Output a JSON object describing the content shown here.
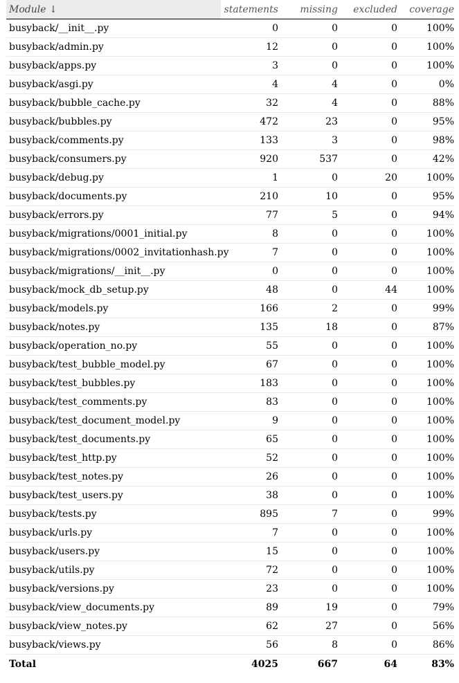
{
  "table": {
    "headers": {
      "module": "Module ↓",
      "statements": "statements",
      "missing": "missing",
      "excluded": "excluded",
      "coverage": "coverage"
    },
    "rows": [
      {
        "module": "busyback/__init__.py",
        "statements": "0",
        "missing": "0",
        "excluded": "0",
        "coverage": "100%"
      },
      {
        "module": "busyback/admin.py",
        "statements": "12",
        "missing": "0",
        "excluded": "0",
        "coverage": "100%"
      },
      {
        "module": "busyback/apps.py",
        "statements": "3",
        "missing": "0",
        "excluded": "0",
        "coverage": "100%"
      },
      {
        "module": "busyback/asgi.py",
        "statements": "4",
        "missing": "4",
        "excluded": "0",
        "coverage": "0%"
      },
      {
        "module": "busyback/bubble_cache.py",
        "statements": "32",
        "missing": "4",
        "excluded": "0",
        "coverage": "88%"
      },
      {
        "module": "busyback/bubbles.py",
        "statements": "472",
        "missing": "23",
        "excluded": "0",
        "coverage": "95%"
      },
      {
        "module": "busyback/comments.py",
        "statements": "133",
        "missing": "3",
        "excluded": "0",
        "coverage": "98%"
      },
      {
        "module": "busyback/consumers.py",
        "statements": "920",
        "missing": "537",
        "excluded": "0",
        "coverage": "42%"
      },
      {
        "module": "busyback/debug.py",
        "statements": "1",
        "missing": "0",
        "excluded": "20",
        "coverage": "100%"
      },
      {
        "module": "busyback/documents.py",
        "statements": "210",
        "missing": "10",
        "excluded": "0",
        "coverage": "95%"
      },
      {
        "module": "busyback/errors.py",
        "statements": "77",
        "missing": "5",
        "excluded": "0",
        "coverage": "94%"
      },
      {
        "module": "busyback/migrations/0001_initial.py",
        "statements": "8",
        "missing": "0",
        "excluded": "0",
        "coverage": "100%"
      },
      {
        "module": "busyback/migrations/0002_invitationhash.py",
        "statements": "7",
        "missing": "0",
        "excluded": "0",
        "coverage": "100%"
      },
      {
        "module": "busyback/migrations/__init__.py",
        "statements": "0",
        "missing": "0",
        "excluded": "0",
        "coverage": "100%"
      },
      {
        "module": "busyback/mock_db_setup.py",
        "statements": "48",
        "missing": "0",
        "excluded": "44",
        "coverage": "100%"
      },
      {
        "module": "busyback/models.py",
        "statements": "166",
        "missing": "2",
        "excluded": "0",
        "coverage": "99%"
      },
      {
        "module": "busyback/notes.py",
        "statements": "135",
        "missing": "18",
        "excluded": "0",
        "coverage": "87%"
      },
      {
        "module": "busyback/operation_no.py",
        "statements": "55",
        "missing": "0",
        "excluded": "0",
        "coverage": "100%"
      },
      {
        "module": "busyback/test_bubble_model.py",
        "statements": "67",
        "missing": "0",
        "excluded": "0",
        "coverage": "100%"
      },
      {
        "module": "busyback/test_bubbles.py",
        "statements": "183",
        "missing": "0",
        "excluded": "0",
        "coverage": "100%"
      },
      {
        "module": "busyback/test_comments.py",
        "statements": "83",
        "missing": "0",
        "excluded": "0",
        "coverage": "100%"
      },
      {
        "module": "busyback/test_document_model.py",
        "statements": "9",
        "missing": "0",
        "excluded": "0",
        "coverage": "100%"
      },
      {
        "module": "busyback/test_documents.py",
        "statements": "65",
        "missing": "0",
        "excluded": "0",
        "coverage": "100%"
      },
      {
        "module": "busyback/test_http.py",
        "statements": "52",
        "missing": "0",
        "excluded": "0",
        "coverage": "100%"
      },
      {
        "module": "busyback/test_notes.py",
        "statements": "26",
        "missing": "0",
        "excluded": "0",
        "coverage": "100%"
      },
      {
        "module": "busyback/test_users.py",
        "statements": "38",
        "missing": "0",
        "excluded": "0",
        "coverage": "100%"
      },
      {
        "module": "busyback/tests.py",
        "statements": "895",
        "missing": "7",
        "excluded": "0",
        "coverage": "99%"
      },
      {
        "module": "busyback/urls.py",
        "statements": "7",
        "missing": "0",
        "excluded": "0",
        "coverage": "100%"
      },
      {
        "module": "busyback/users.py",
        "statements": "15",
        "missing": "0",
        "excluded": "0",
        "coverage": "100%"
      },
      {
        "module": "busyback/utils.py",
        "statements": "72",
        "missing": "0",
        "excluded": "0",
        "coverage": "100%"
      },
      {
        "module": "busyback/versions.py",
        "statements": "23",
        "missing": "0",
        "excluded": "0",
        "coverage": "100%"
      },
      {
        "module": "busyback/view_documents.py",
        "statements": "89",
        "missing": "19",
        "excluded": "0",
        "coverage": "79%"
      },
      {
        "module": "busyback/view_notes.py",
        "statements": "62",
        "missing": "27",
        "excluded": "0",
        "coverage": "56%"
      },
      {
        "module": "busyback/views.py",
        "statements": "56",
        "missing": "8",
        "excluded": "0",
        "coverage": "86%"
      }
    ],
    "total": {
      "label": "Total",
      "statements": "4025",
      "missing": "667",
      "excluded": "64",
      "coverage": "83%"
    }
  }
}
